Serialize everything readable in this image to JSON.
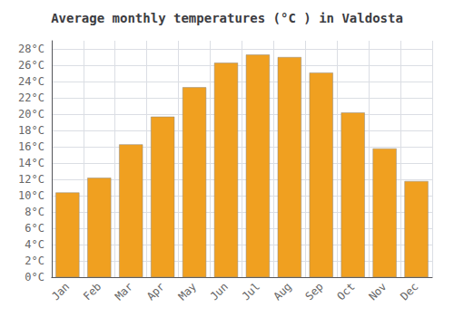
{
  "chart_data": {
    "type": "bar",
    "title": "Average monthly temperatures (°C ) in Valdosta",
    "categories": [
      "Jan",
      "Feb",
      "Mar",
      "Apr",
      "May",
      "Jun",
      "Jul",
      "Aug",
      "Sep",
      "Oct",
      "Nov",
      "Dec"
    ],
    "values": [
      10.4,
      12.2,
      16.3,
      19.7,
      23.3,
      26.3,
      27.3,
      27.0,
      25.1,
      20.2,
      15.8,
      11.8
    ],
    "color": "#F0A020",
    "ylim": [
      0,
      29
    ],
    "yticks": [
      {
        "value": 0,
        "label": "0°C"
      },
      {
        "value": 2,
        "label": "2°C"
      },
      {
        "value": 4,
        "label": "4°C"
      },
      {
        "value": 6,
        "label": "6°C"
      },
      {
        "value": 8,
        "label": "8°C"
      },
      {
        "value": 10,
        "label": "10°C"
      },
      {
        "value": 12,
        "label": "12°C"
      },
      {
        "value": 14,
        "label": "14°C"
      },
      {
        "value": 16,
        "label": "16°C"
      },
      {
        "value": 18,
        "label": "18°C"
      },
      {
        "value": 20,
        "label": "20°C"
      },
      {
        "value": 22,
        "label": "22°C"
      },
      {
        "value": 24,
        "label": "24°C"
      },
      {
        "value": 26,
        "label": "26°C"
      },
      {
        "value": 28,
        "label": "28°C"
      }
    ],
    "grid": true
  }
}
